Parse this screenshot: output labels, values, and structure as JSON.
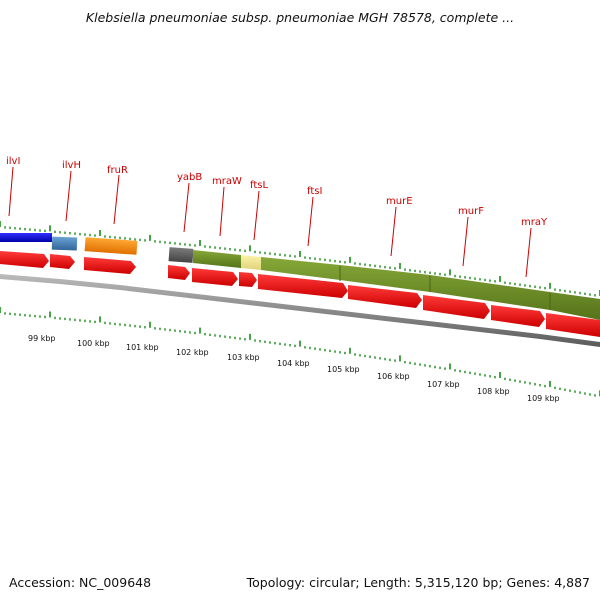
{
  "title": "Klebsiella pneumoniae subsp. pneumoniae MGH 78578, complete ...",
  "footer": {
    "accession": "Accession: NC_009648",
    "summary": "Topology: circular; Length: 5,315,120 bp; Genes: 4,887"
  },
  "colors": {
    "gene_label": "#cc0000",
    "tick": "#1a8a1a",
    "cds": "#ee1111",
    "backbone": "#8a8a8a"
  },
  "gene_labels": [
    {
      "name": "ilvI"
    },
    {
      "name": "ilvH"
    },
    {
      "name": "fruR"
    },
    {
      "name": "yabB"
    },
    {
      "name": "mraW"
    },
    {
      "name": "ftsL"
    },
    {
      "name": "ftsI"
    },
    {
      "name": "murE"
    },
    {
      "name": "murF"
    },
    {
      "name": "mraY"
    }
  ],
  "scale_labels": [
    "99 kbp",
    "100 kbp",
    "101 kbp",
    "102 kbp",
    "103 kbp",
    "104 kbp",
    "105 kbp",
    "106 kbp",
    "107 kbp",
    "108 kbp",
    "109 kbp"
  ],
  "gene_blocks": [
    {
      "color": "#1a1acc"
    },
    {
      "color": "#4682b4"
    },
    {
      "color": "#ff8c00"
    },
    {
      "color": "#606060"
    },
    {
      "color": "#6b8e23"
    },
    {
      "color": "#f0e68c"
    },
    {
      "color": "#6b8e23"
    }
  ]
}
